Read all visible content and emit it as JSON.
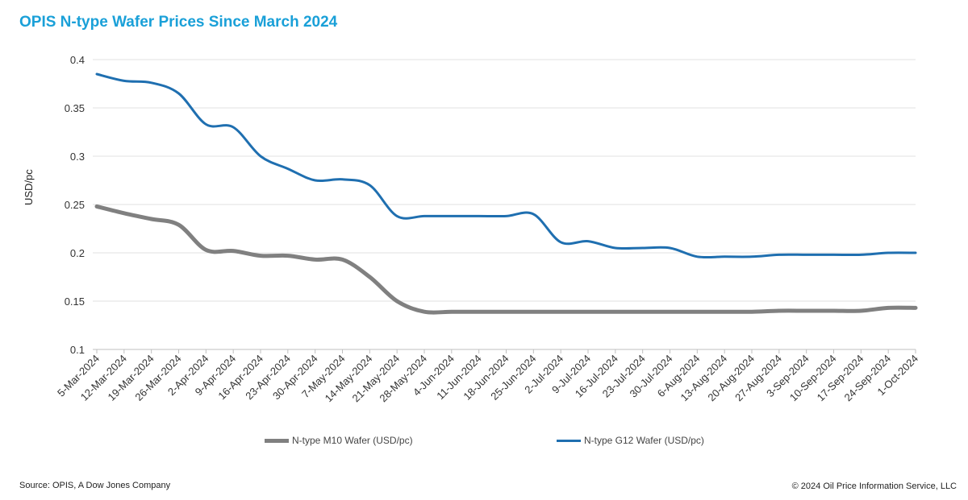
{
  "chart_data": {
    "type": "line",
    "title": "OPIS N-type Wafer Prices Since March 2024",
    "xlabel": "",
    "ylabel": "USD/pc",
    "ylim": [
      0.1,
      0.4
    ],
    "yticks": [
      "0.1",
      "0.15",
      "0.2",
      "0.25",
      "0.3",
      "0.35",
      "0.4"
    ],
    "grid": true,
    "legend_position": "bottom",
    "categories": [
      "5-Mar-2024",
      "12-Mar-2024",
      "19-Mar-2024",
      "26-Mar-2024",
      "2-Apr-2024",
      "9-Apr-2024",
      "16-Apr-2024",
      "23-Apr-2024",
      "30-Apr-2024",
      "7-May-2024",
      "14-May-2024",
      "21-May-2024",
      "28-May-2024",
      "4-Jun-2024",
      "11-Jun-2024",
      "18-Jun-2024",
      "25-Jun-2024",
      "2-Jul-2024",
      "9-Jul-2024",
      "16-Jul-2024",
      "23-Jul-2024",
      "30-Jul-2024",
      "6-Aug-2024",
      "13-Aug-2024",
      "20-Aug-2024",
      "27-Aug-2024",
      "3-Sep-2024",
      "10-Sep-2024",
      "17-Sep-2024",
      "24-Sep-2024",
      "1-Oct-2024"
    ],
    "series": [
      {
        "name": "N-type M10 Wafer (USD/pc)",
        "color": "#808080",
        "values": [
          0.248,
          0.241,
          0.235,
          0.229,
          0.203,
          0.202,
          0.197,
          0.197,
          0.193,
          0.193,
          0.175,
          0.15,
          0.139,
          0.139,
          0.139,
          0.139,
          0.139,
          0.139,
          0.139,
          0.139,
          0.139,
          0.139,
          0.139,
          0.139,
          0.139,
          0.14,
          0.14,
          0.14,
          0.14,
          0.143,
          0.143
        ]
      },
      {
        "name": "N-type G12 Wafer (USD/pc)",
        "color": "#1f6fb0",
        "values": [
          0.385,
          0.378,
          0.376,
          0.365,
          0.333,
          0.33,
          0.3,
          0.287,
          0.275,
          0.276,
          0.27,
          0.238,
          0.238,
          0.238,
          0.238,
          0.238,
          0.24,
          0.211,
          0.212,
          0.205,
          0.205,
          0.205,
          0.196,
          0.196,
          0.196,
          0.198,
          0.198,
          0.198,
          0.198,
          0.2,
          0.2
        ]
      }
    ]
  },
  "footer": {
    "source": "Source: OPIS, A Dow Jones Company",
    "copyright": "© 2024 Oil Price Information Service, LLC"
  }
}
